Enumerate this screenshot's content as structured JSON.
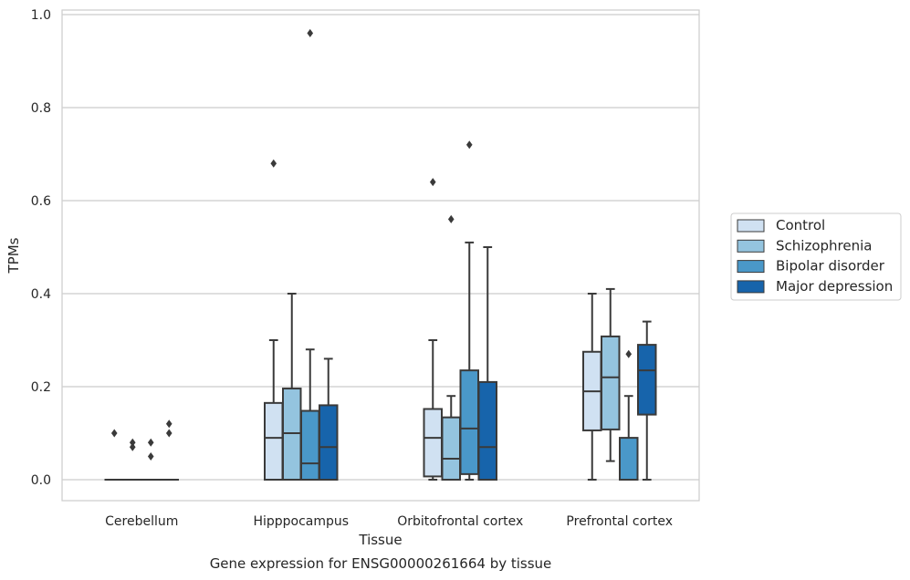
{
  "chart_data": {
    "type": "box",
    "xlabel": "Tissue",
    "ylabel": "TPMs",
    "caption": "Gene expression for ENSG00000261664 by tissue",
    "ylim": [
      -0.045,
      1.01
    ],
    "yticks": [
      "0.0",
      "0.2",
      "0.4",
      "0.6",
      "0.8",
      "1.0"
    ],
    "ytick_values": [
      0,
      0.2,
      0.4,
      0.6,
      0.8,
      1.0
    ],
    "grid": "horizontal",
    "legend_position": "right",
    "categories": [
      "Cerebellum",
      "Hipppocampus",
      "Orbitofrontal cortex",
      "Prefrontal cortex"
    ],
    "series": [
      {
        "name": "Control",
        "color": "#d0e1f2",
        "boxes": [
          {
            "whislo": 0,
            "q1": 0,
            "med": 0,
            "q3": 0,
            "whishi": 0,
            "fliers": [
              0.1
            ]
          },
          {
            "whislo": 0,
            "q1": 0,
            "med": 0.09,
            "q3": 0.165,
            "whishi": 0.3,
            "fliers": [
              0.68
            ]
          },
          {
            "whislo": 0,
            "q1": 0.007,
            "med": 0.09,
            "q3": 0.152,
            "whishi": 0.3,
            "fliers": [
              0.64
            ]
          },
          {
            "whislo": 0,
            "q1": 0.106,
            "med": 0.19,
            "q3": 0.275,
            "whishi": 0.4,
            "fliers": []
          }
        ]
      },
      {
        "name": "Schizophrenia",
        "color": "#94c4df",
        "boxes": [
          {
            "whislo": 0,
            "q1": 0,
            "med": 0,
            "q3": 0,
            "whishi": 0,
            "fliers": [
              0.08,
              0.07
            ]
          },
          {
            "whislo": 0,
            "q1": 0,
            "med": 0.1,
            "q3": 0.196,
            "whishi": 0.4,
            "fliers": []
          },
          {
            "whislo": 0,
            "q1": 0,
            "med": 0.045,
            "q3": 0.134,
            "whishi": 0.18,
            "fliers": [
              0.56
            ]
          },
          {
            "whislo": 0.04,
            "q1": 0.108,
            "med": 0.22,
            "q3": 0.308,
            "whishi": 0.41,
            "fliers": []
          }
        ]
      },
      {
        "name": "Bipolar disorder",
        "color": "#4a98c9",
        "boxes": [
          {
            "whislo": 0,
            "q1": 0,
            "med": 0,
            "q3": 0,
            "whishi": 0,
            "fliers": [
              0.08,
              0.05
            ]
          },
          {
            "whislo": 0,
            "q1": 0,
            "med": 0.035,
            "q3": 0.148,
            "whishi": 0.28,
            "fliers": [
              0.96
            ]
          },
          {
            "whislo": 0,
            "q1": 0.012,
            "med": 0.11,
            "q3": 0.235,
            "whishi": 0.51,
            "fliers": [
              0.72
            ]
          },
          {
            "whislo": 0,
            "q1": 0,
            "med": 0,
            "q3": 0.09,
            "whishi": 0.18,
            "fliers": [
              0.27
            ]
          }
        ]
      },
      {
        "name": "Major depression",
        "color": "#1764ab",
        "boxes": [
          {
            "whislo": 0,
            "q1": 0,
            "med": 0,
            "q3": 0,
            "whishi": 0,
            "fliers": [
              0.12,
              0.1
            ]
          },
          {
            "whislo": 0,
            "q1": 0,
            "med": 0.07,
            "q3": 0.16,
            "whishi": 0.26,
            "fliers": []
          },
          {
            "whislo": 0,
            "q1": 0,
            "med": 0.07,
            "q3": 0.21,
            "whishi": 0.5,
            "fliers": []
          },
          {
            "whislo": 0,
            "q1": 0.14,
            "med": 0.235,
            "q3": 0.29,
            "whishi": 0.34,
            "fliers": []
          }
        ]
      }
    ]
  }
}
